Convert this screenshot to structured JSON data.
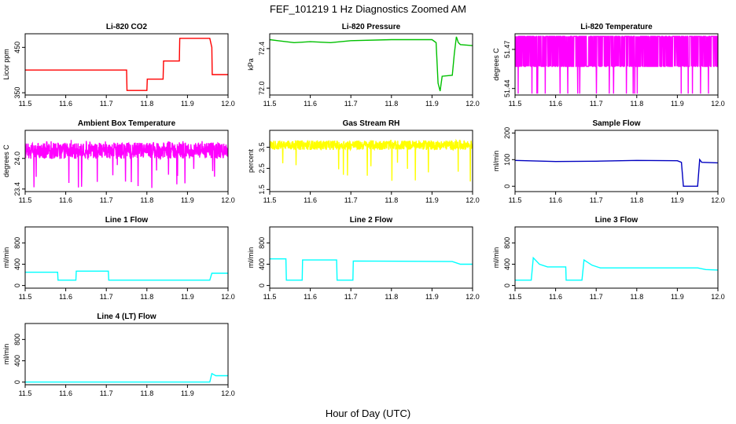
{
  "figure": {
    "title": "FEF_101219  1 Hz Diagnostics Zoomed AM",
    "xlabel": "Hour of Day (UTC)"
  },
  "chart_data": [
    {
      "type": "line",
      "title": "Li-820 CO2",
      "ylabel": "Licor ppm",
      "color": "#ff0000",
      "xlim": [
        11.5,
        12.0
      ],
      "ylim": [
        345,
        480
      ],
      "yticks": [
        "350",
        "450"
      ],
      "yticks_values": [
        350,
        450
      ],
      "tick_anchor": "start",
      "x": [
        11.5,
        11.75,
        11.751,
        11.8,
        11.801,
        11.84,
        11.841,
        11.88,
        11.881,
        11.955,
        11.96,
        11.961,
        12.0
      ],
      "y": [
        400,
        400,
        355,
        355,
        380,
        380,
        420,
        420,
        470,
        470,
        450,
        390,
        390
      ]
    },
    {
      "type": "line",
      "title": "Li-820 Pressure",
      "ylabel": "kPa",
      "color": "#00c000",
      "xlim": [
        11.5,
        12.0
      ],
      "ylim": [
        71.93,
        72.55
      ],
      "yticks": [
        "72.0",
        "72.4"
      ],
      "yticks_values": [
        72.0,
        72.4
      ],
      "tick_anchor": "start",
      "x": [
        11.5,
        11.52,
        11.56,
        11.6,
        11.65,
        11.7,
        11.8,
        11.9,
        11.91,
        11.915,
        11.92,
        11.925,
        11.95,
        11.955,
        11.96,
        11.965,
        11.97,
        12.0
      ],
      "y": [
        72.49,
        72.48,
        72.46,
        72.47,
        72.46,
        72.48,
        72.49,
        72.49,
        72.46,
        72.05,
        71.97,
        72.12,
        72.13,
        72.35,
        72.52,
        72.46,
        72.44,
        72.43
      ]
    },
    {
      "type": "line",
      "title": "Li-820 Temperature",
      "ylabel": "degrees C",
      "color": "#ff00ff",
      "xlim": [
        11.5,
        12.0
      ],
      "ylim": [
        51.435,
        51.482
      ],
      "yticks": [
        "51.44",
        "51.47"
      ],
      "yticks_values": [
        51.44,
        51.47
      ],
      "tick_anchor": "end",
      "base": 51.457,
      "high": 51.48,
      "low": 51.436,
      "noise": "binary"
    },
    {
      "type": "line",
      "title": "Ambient Box Temperature",
      "ylabel": "degrees C",
      "color": "#ff00ff",
      "xlim": [
        11.5,
        12.0
      ],
      "ylim": [
        23.35,
        24.55
      ],
      "yticks": [
        "23.4",
        "24.0"
      ],
      "yticks_values": [
        23.4,
        24.0
      ],
      "tick_anchor": "end",
      "base": 24.15,
      "noise": "band"
    },
    {
      "type": "line",
      "title": "Gas Stream RH",
      "ylabel": "percent",
      "color": "#ffff00",
      "xlim": [
        11.5,
        12.0
      ],
      "ylim": [
        1.4,
        4.3
      ],
      "yticks": [
        "1.5",
        "2.5",
        "3.5"
      ],
      "yticks_values": [
        1.5,
        2.5,
        3.5
      ],
      "tick_anchor": "end",
      "base": 3.6,
      "noise": "spikes-down"
    },
    {
      "type": "line",
      "title": "Sample Flow",
      "ylabel": "ml/min",
      "color": "#0000c0",
      "xlim": [
        11.5,
        12.0
      ],
      "ylim": [
        -20,
        210
      ],
      "yticks": [
        "0",
        "100",
        "200"
      ],
      "yticks_values": [
        0,
        100,
        200
      ],
      "tick_anchor": "start",
      "x": [
        11.5,
        11.6,
        11.7,
        11.8,
        11.9,
        11.91,
        11.915,
        11.95,
        11.955,
        11.96,
        12.0
      ],
      "y": [
        97,
        93,
        94,
        97,
        96,
        90,
        0,
        0,
        100,
        90,
        88
      ]
    },
    {
      "type": "line",
      "title": "Line 1 Flow",
      "ylabel": "ml/min",
      "color": "#00ffff",
      "xlim": [
        11.5,
        12.0
      ],
      "ylim": [
        -50,
        1100
      ],
      "yticks": [
        "0",
        "400",
        "800"
      ],
      "yticks_values": [
        0,
        400,
        800
      ],
      "tick_anchor": "start",
      "x": [
        11.5,
        11.58,
        11.581,
        11.625,
        11.626,
        11.705,
        11.706,
        11.955,
        11.96,
        11.97,
        12.0
      ],
      "y": [
        250,
        250,
        100,
        100,
        270,
        270,
        100,
        100,
        230,
        230,
        230
      ]
    },
    {
      "type": "line",
      "title": "Line 2 Flow",
      "ylabel": "ml/min",
      "color": "#00ffff",
      "xlim": [
        11.5,
        12.0
      ],
      "ylim": [
        -50,
        1100
      ],
      "yticks": [
        "0",
        "400",
        "800"
      ],
      "yticks_values": [
        0,
        400,
        800
      ],
      "tick_anchor": "start",
      "x": [
        11.5,
        11.54,
        11.541,
        11.58,
        11.581,
        11.665,
        11.666,
        11.705,
        11.706,
        11.95,
        11.97,
        12.0
      ],
      "y": [
        500,
        500,
        100,
        100,
        480,
        480,
        100,
        100,
        460,
        450,
        400,
        400
      ]
    },
    {
      "type": "line",
      "title": "Line 3 Flow",
      "ylabel": "ml/min",
      "color": "#00ffff",
      "xlim": [
        11.5,
        12.0
      ],
      "ylim": [
        -50,
        1100
      ],
      "yticks": [
        "0",
        "400",
        "800"
      ],
      "yticks_values": [
        0,
        400,
        800
      ],
      "tick_anchor": "start",
      "x": [
        11.5,
        11.54,
        11.545,
        11.56,
        11.58,
        11.625,
        11.626,
        11.665,
        11.67,
        11.69,
        11.71,
        11.95,
        11.97,
        12.0
      ],
      "y": [
        100,
        100,
        520,
        400,
        350,
        350,
        100,
        100,
        480,
        380,
        330,
        330,
        300,
        290
      ]
    },
    {
      "type": "line",
      "title": "Line 4 (LT) Flow",
      "ylabel": "ml/min",
      "color": "#00ffff",
      "xlim": [
        11.5,
        12.0
      ],
      "ylim": [
        -50,
        1100
      ],
      "yticks": [
        "0",
        "400",
        "800"
      ],
      "yticks_values": [
        0,
        400,
        800
      ],
      "tick_anchor": "start",
      "x": [
        11.5,
        11.955,
        11.96,
        11.97,
        12.0
      ],
      "y": [
        0,
        0,
        160,
        120,
        120
      ]
    }
  ],
  "xticks": [
    "11.5",
    "11.6",
    "11.7",
    "11.8",
    "11.9",
    "12.0"
  ],
  "xticks_values": [
    11.5,
    11.6,
    11.7,
    11.8,
    11.9,
    12.0
  ]
}
